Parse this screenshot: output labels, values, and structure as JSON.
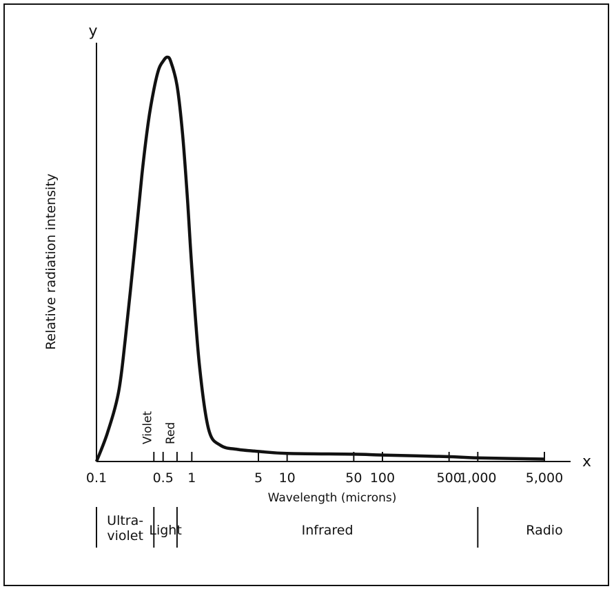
{
  "chart_data": {
    "type": "line",
    "title": "",
    "xlabel": "Wavelength (microns)",
    "ylabel": "Relative radiation intensity",
    "x_axis_letter": "x",
    "y_axis_letter": "y",
    "x_scale": "log",
    "xlim": [
      0.1,
      5000
    ],
    "ylim": [
      0,
      1
    ],
    "grid": false,
    "x_ticks": [
      {
        "value": 0.1,
        "label": "0.1"
      },
      {
        "value": 0.5,
        "label": "0.5"
      },
      {
        "value": 1,
        "label": "1"
      },
      {
        "value": 5,
        "label": "5"
      },
      {
        "value": 10,
        "label": "10"
      },
      {
        "value": 50,
        "label": "50"
      },
      {
        "value": 100,
        "label": "100"
      },
      {
        "value": 500,
        "label": "500"
      },
      {
        "value": 1000,
        "label": "1,000"
      },
      {
        "value": 5000,
        "label": "5,000"
      }
    ],
    "minor_ticks": [
      0.4,
      0.7
    ],
    "wavelength_markers": [
      {
        "label": "Violet",
        "value": 0.4
      },
      {
        "label": "Red",
        "value": 0.7
      }
    ],
    "bands": [
      {
        "label_lines": [
          "Ultra-",
          "violet"
        ],
        "from": 0.1,
        "to": 0.4
      },
      {
        "label_lines": [
          "Light"
        ],
        "from": 0.4,
        "to": 0.7
      },
      {
        "label_lines": [
          "Infrared"
        ],
        "from": 0.7,
        "to": 1000
      },
      {
        "label_lines": [
          "Radio"
        ],
        "from": 1000,
        "to": 5000
      }
    ],
    "series": [
      {
        "x": [
          0.1,
          0.13,
          0.17,
          0.2,
          0.25,
          0.3,
          0.35,
          0.4,
          0.45,
          0.5,
          0.55,
          0.6,
          0.7,
          0.8,
          0.9,
          1.0,
          1.2,
          1.5,
          2,
          3,
          5,
          10,
          50,
          100,
          500,
          1000,
          5000
        ],
        "y": [
          0.0,
          0.07,
          0.17,
          0.3,
          0.52,
          0.71,
          0.84,
          0.92,
          0.97,
          0.99,
          1.0,
          0.99,
          0.93,
          0.81,
          0.65,
          0.48,
          0.24,
          0.08,
          0.04,
          0.03,
          0.025,
          0.02,
          0.018,
          0.016,
          0.012,
          0.009,
          0.006
        ]
      }
    ]
  },
  "colors": {
    "line": "#111111",
    "background": "#ffffff"
  }
}
